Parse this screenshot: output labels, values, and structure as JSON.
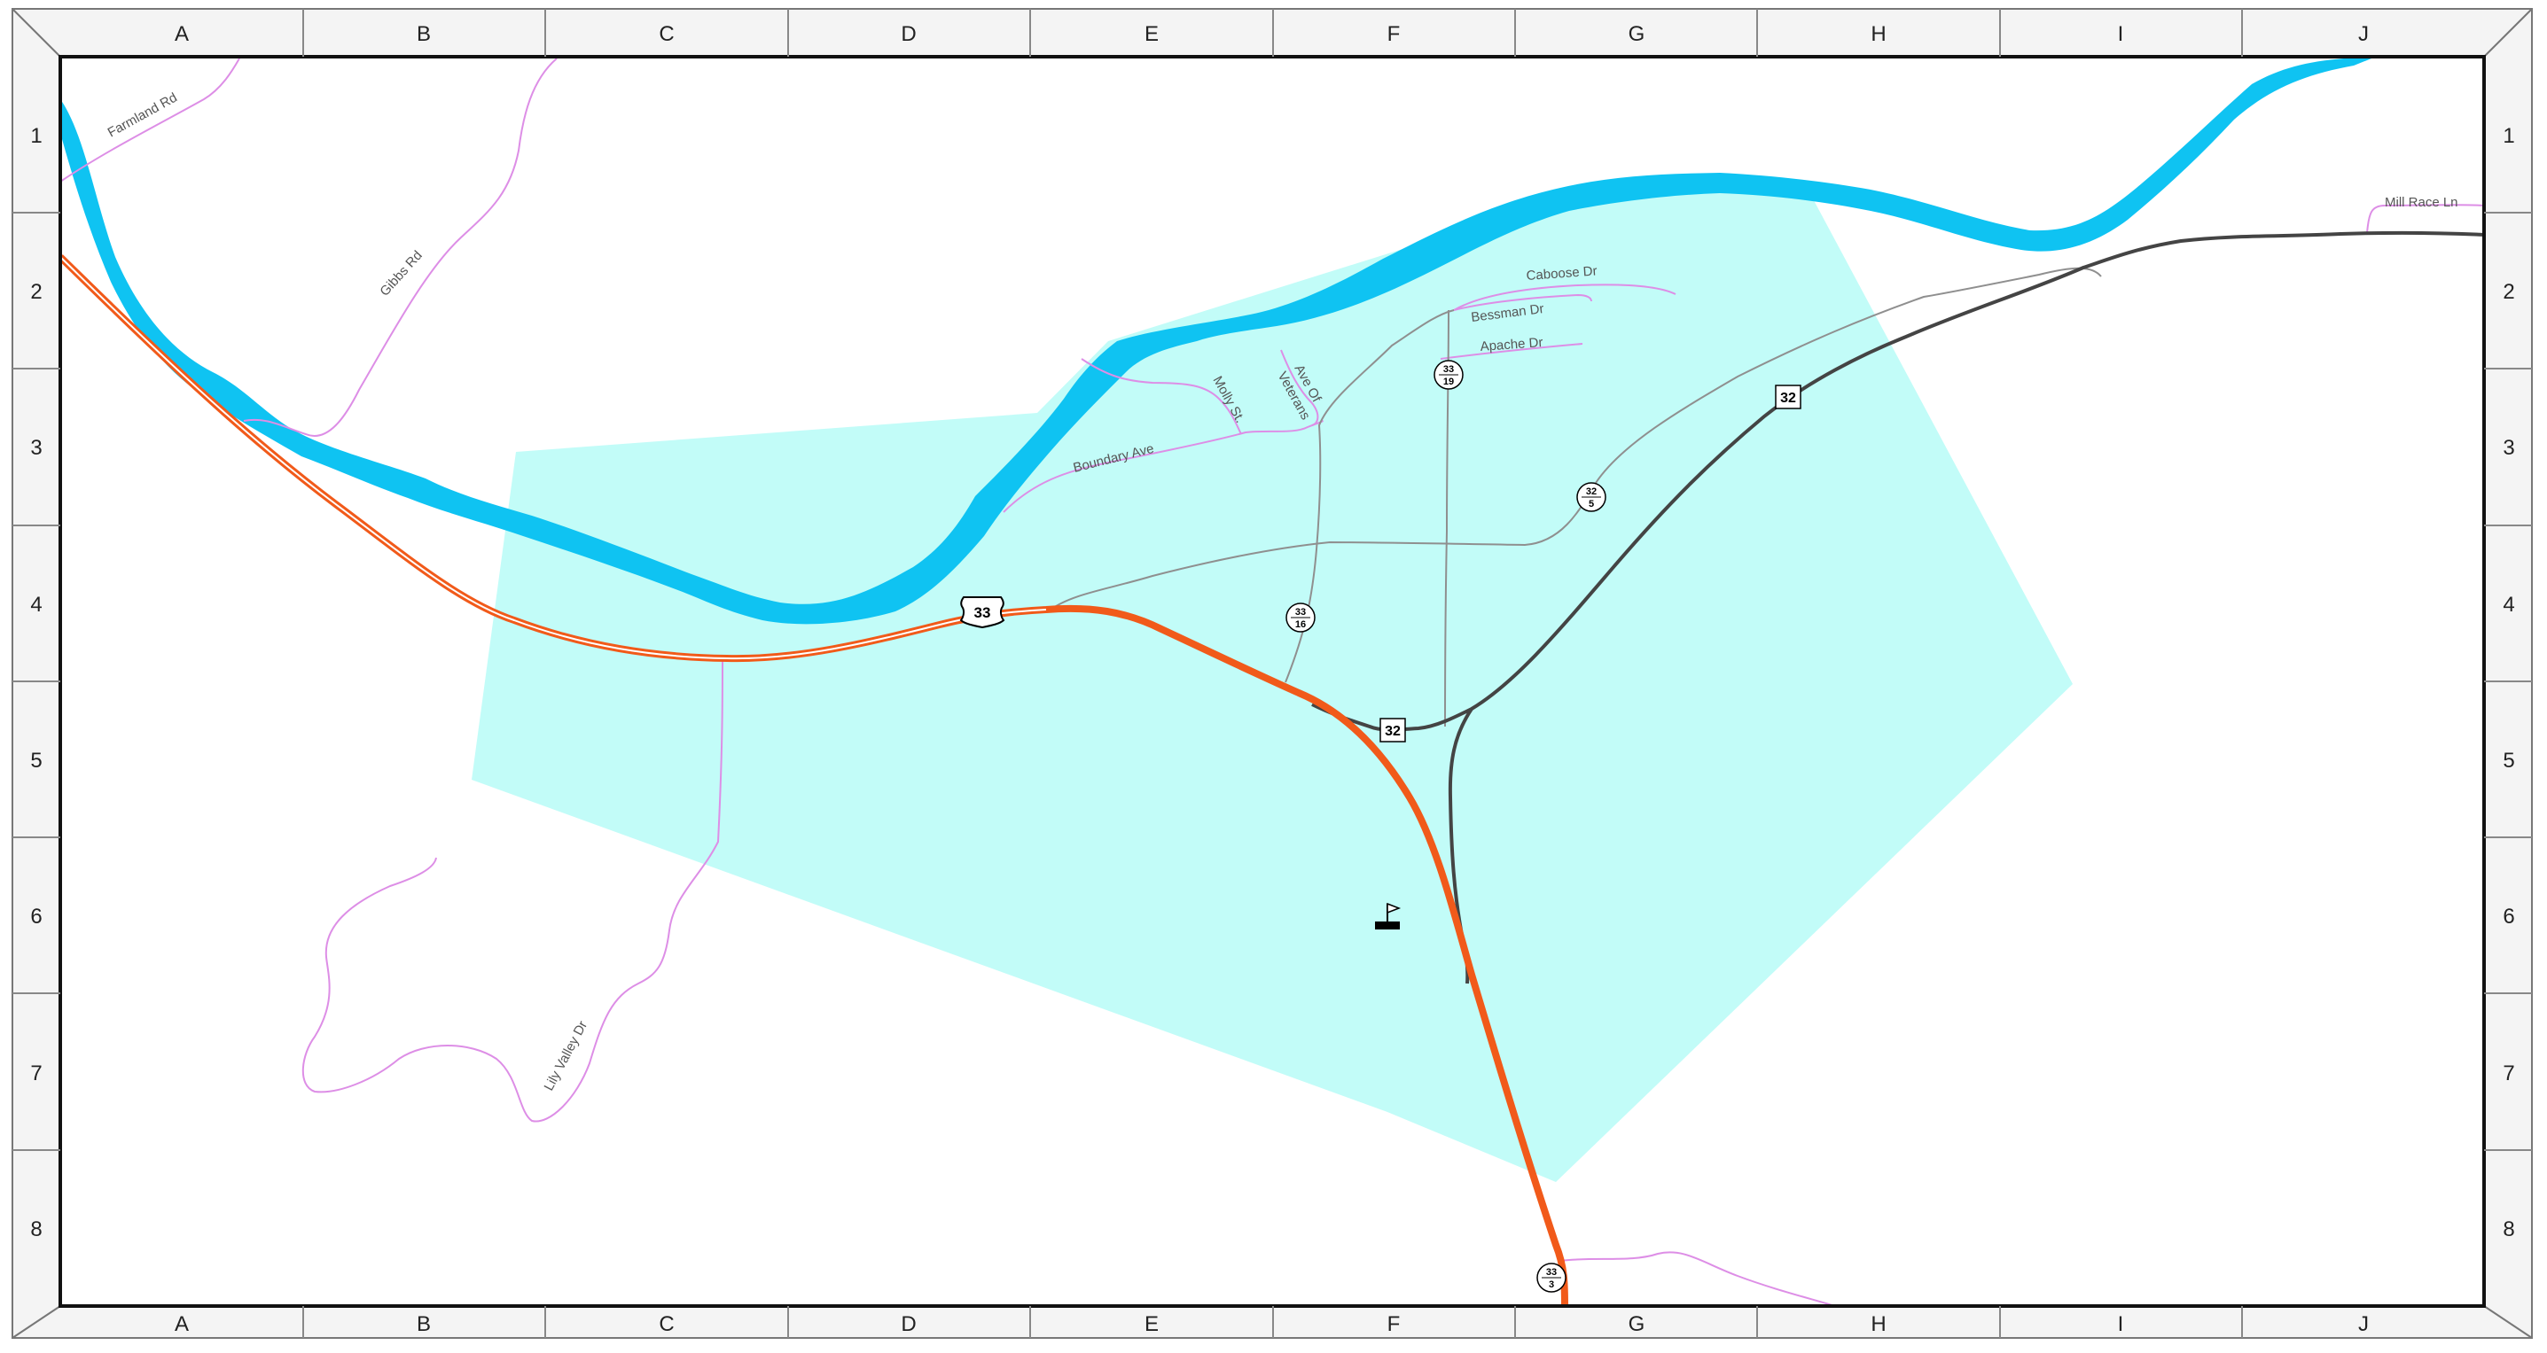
{
  "map": {
    "colors": {
      "river": "#0fc3f2",
      "area": "#c2fcf8",
      "us_highway": "#f15a1a",
      "state_route": "#444444",
      "local_road": "#8f8f8f",
      "minor_road": "#dd8ee6"
    },
    "grid": {
      "columns": [
        "A",
        "B",
        "C",
        "D",
        "E",
        "F",
        "G",
        "H",
        "I",
        "J"
      ],
      "rows": [
        "1",
        "2",
        "3",
        "4",
        "5",
        "6",
        "7",
        "8"
      ]
    },
    "road_labels": {
      "farmland": "Farmland Rd",
      "gibbs": "Gibbs Rd",
      "caboose": "Caboose Dr",
      "bessman": "Bessman Dr",
      "apache": "Apache Dr",
      "molly": "Molly St.",
      "ave_of": "Ave Of",
      "veterans": "Veterans",
      "boundary": "Boundary Ave",
      "mill_race": "Mill Race Ln",
      "lily_valley": "Lily Valley Dr"
    },
    "shields": {
      "us33": "33",
      "sr32_main": "32",
      "sr32_junction": "32",
      "c33_19": {
        "top": "33",
        "bottom": "19"
      },
      "c32_5": {
        "top": "32",
        "bottom": "5"
      },
      "c33_16": {
        "top": "33",
        "bottom": "16"
      },
      "c33_3": {
        "top": "33",
        "bottom": "3"
      }
    },
    "landmark_icon": "flag-icon"
  }
}
